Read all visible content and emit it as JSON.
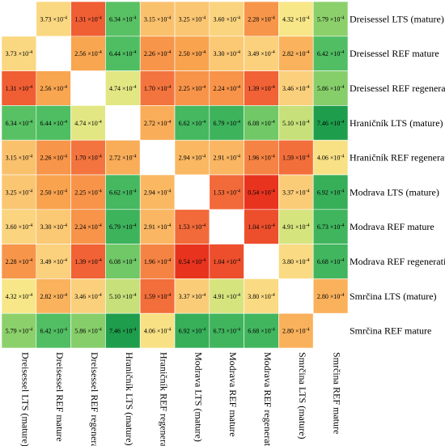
{
  "chart_data": {
    "type": "heatmap",
    "title": "",
    "labels": [
      "Dreisessel LTS (mature)",
      "Dreisessel REF mature",
      "Dreisessel REF regeneration",
      "Hraničník LTS (mature)",
      "Hraničník REF regeneration",
      "Modrava LTS (mature)",
      "Modrava REF mature",
      "Modrava REF regeneration",
      "Smrčina LTS (mature)",
      "Smrčina REF mature"
    ],
    "value_unit_exponent": -4,
    "values": [
      [
        null,
        3.73,
        1.31,
        6.34,
        3.15,
        3.25,
        3.6,
        2.28,
        4.32,
        5.79
      ],
      [
        3.73,
        null,
        2.56,
        6.44,
        2.26,
        2.5,
        3.3,
        3.49,
        2.82,
        6.42
      ],
      [
        1.31,
        2.56,
        null,
        4.74,
        1.7,
        2.25,
        2.24,
        1.39,
        3.46,
        5.86
      ],
      [
        6.34,
        6.44,
        4.74,
        null,
        2.72,
        6.62,
        6.79,
        6.08,
        5.1,
        7.46
      ],
      [
        3.15,
        2.26,
        1.7,
        2.72,
        null,
        2.94,
        2.91,
        1.96,
        1.59,
        4.06
      ],
      [
        3.25,
        2.5,
        2.25,
        6.62,
        2.94,
        null,
        1.53,
        0.54,
        3.37,
        6.92
      ],
      [
        3.6,
        3.3,
        2.24,
        6.79,
        2.91,
        1.53,
        null,
        1.04,
        4.91,
        6.73
      ],
      [
        2.28,
        3.49,
        1.39,
        6.08,
        1.96,
        0.54,
        1.04,
        null,
        3.8,
        6.68
      ],
      [
        4.32,
        2.82,
        3.46,
        5.1,
        1.59,
        3.37,
        4.91,
        3.8,
        null,
        2.8
      ],
      [
        5.79,
        6.42,
        5.86,
        7.46,
        4.06,
        6.92,
        6.73,
        6.68,
        2.8,
        null
      ]
    ],
    "color_scale": [
      "#e8341f",
      "#f26a3a",
      "#f9a44f",
      "#fbd27e",
      "#f6ec8a",
      "#a9d86e",
      "#4cbd63",
      "#1e9e4c"
    ],
    "legend": "none",
    "grid": false
  }
}
